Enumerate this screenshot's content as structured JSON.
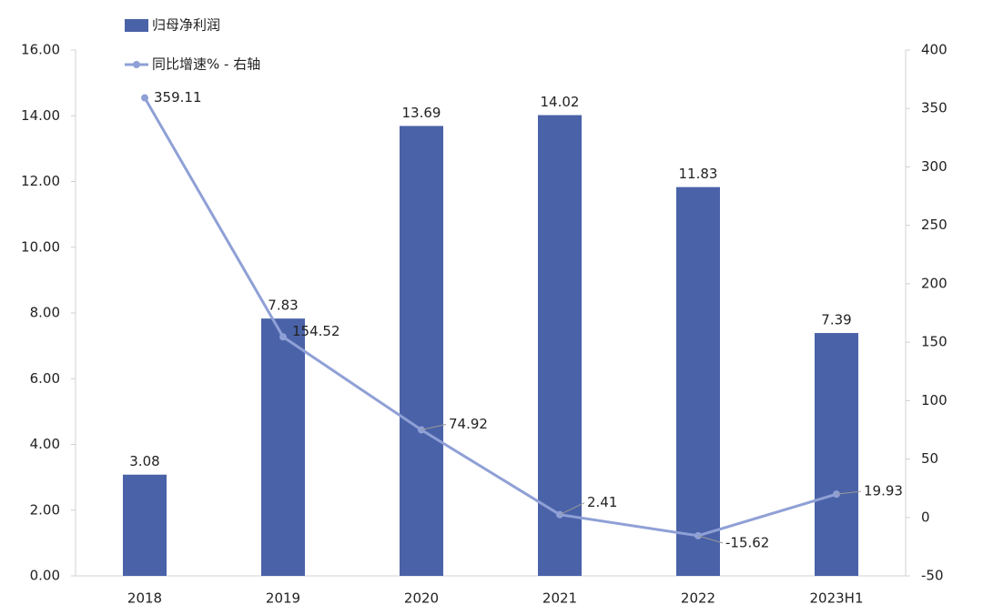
{
  "chart_data": {
    "type": "bar",
    "categories": [
      "2018",
      "2019",
      "2020",
      "2021",
      "2022",
      "2023H1"
    ],
    "series": [
      {
        "name": "归母净利润",
        "type": "bar",
        "color": "#4a62a8",
        "values": [
          3.08,
          7.83,
          13.69,
          14.02,
          11.83,
          7.39
        ]
      },
      {
        "name": "同比增速% - 右轴",
        "type": "line",
        "axis": "y2",
        "color": "#8fa0d6",
        "values": [
          359.11,
          154.52,
          74.92,
          2.41,
          -15.62,
          19.93
        ]
      }
    ],
    "ylim": [
      0,
      16
    ],
    "yticks": [
      {
        "value": 0,
        "label": "0.00"
      },
      {
        "value": 2,
        "label": "2.00"
      },
      {
        "value": 4,
        "label": "4.00"
      },
      {
        "value": 6,
        "label": "6.00"
      },
      {
        "value": 8,
        "label": "8.00"
      },
      {
        "value": 10,
        "label": "10.00"
      },
      {
        "value": 12,
        "label": "12.00"
      },
      {
        "value": 14,
        "label": "14.00"
      },
      {
        "value": 16,
        "label": "16.00"
      }
    ],
    "y2lim": [
      -50,
      400
    ],
    "y2ticks": [
      -50,
      0,
      50,
      100,
      150,
      200,
      250,
      300,
      350,
      400
    ],
    "legend": "top-left"
  }
}
